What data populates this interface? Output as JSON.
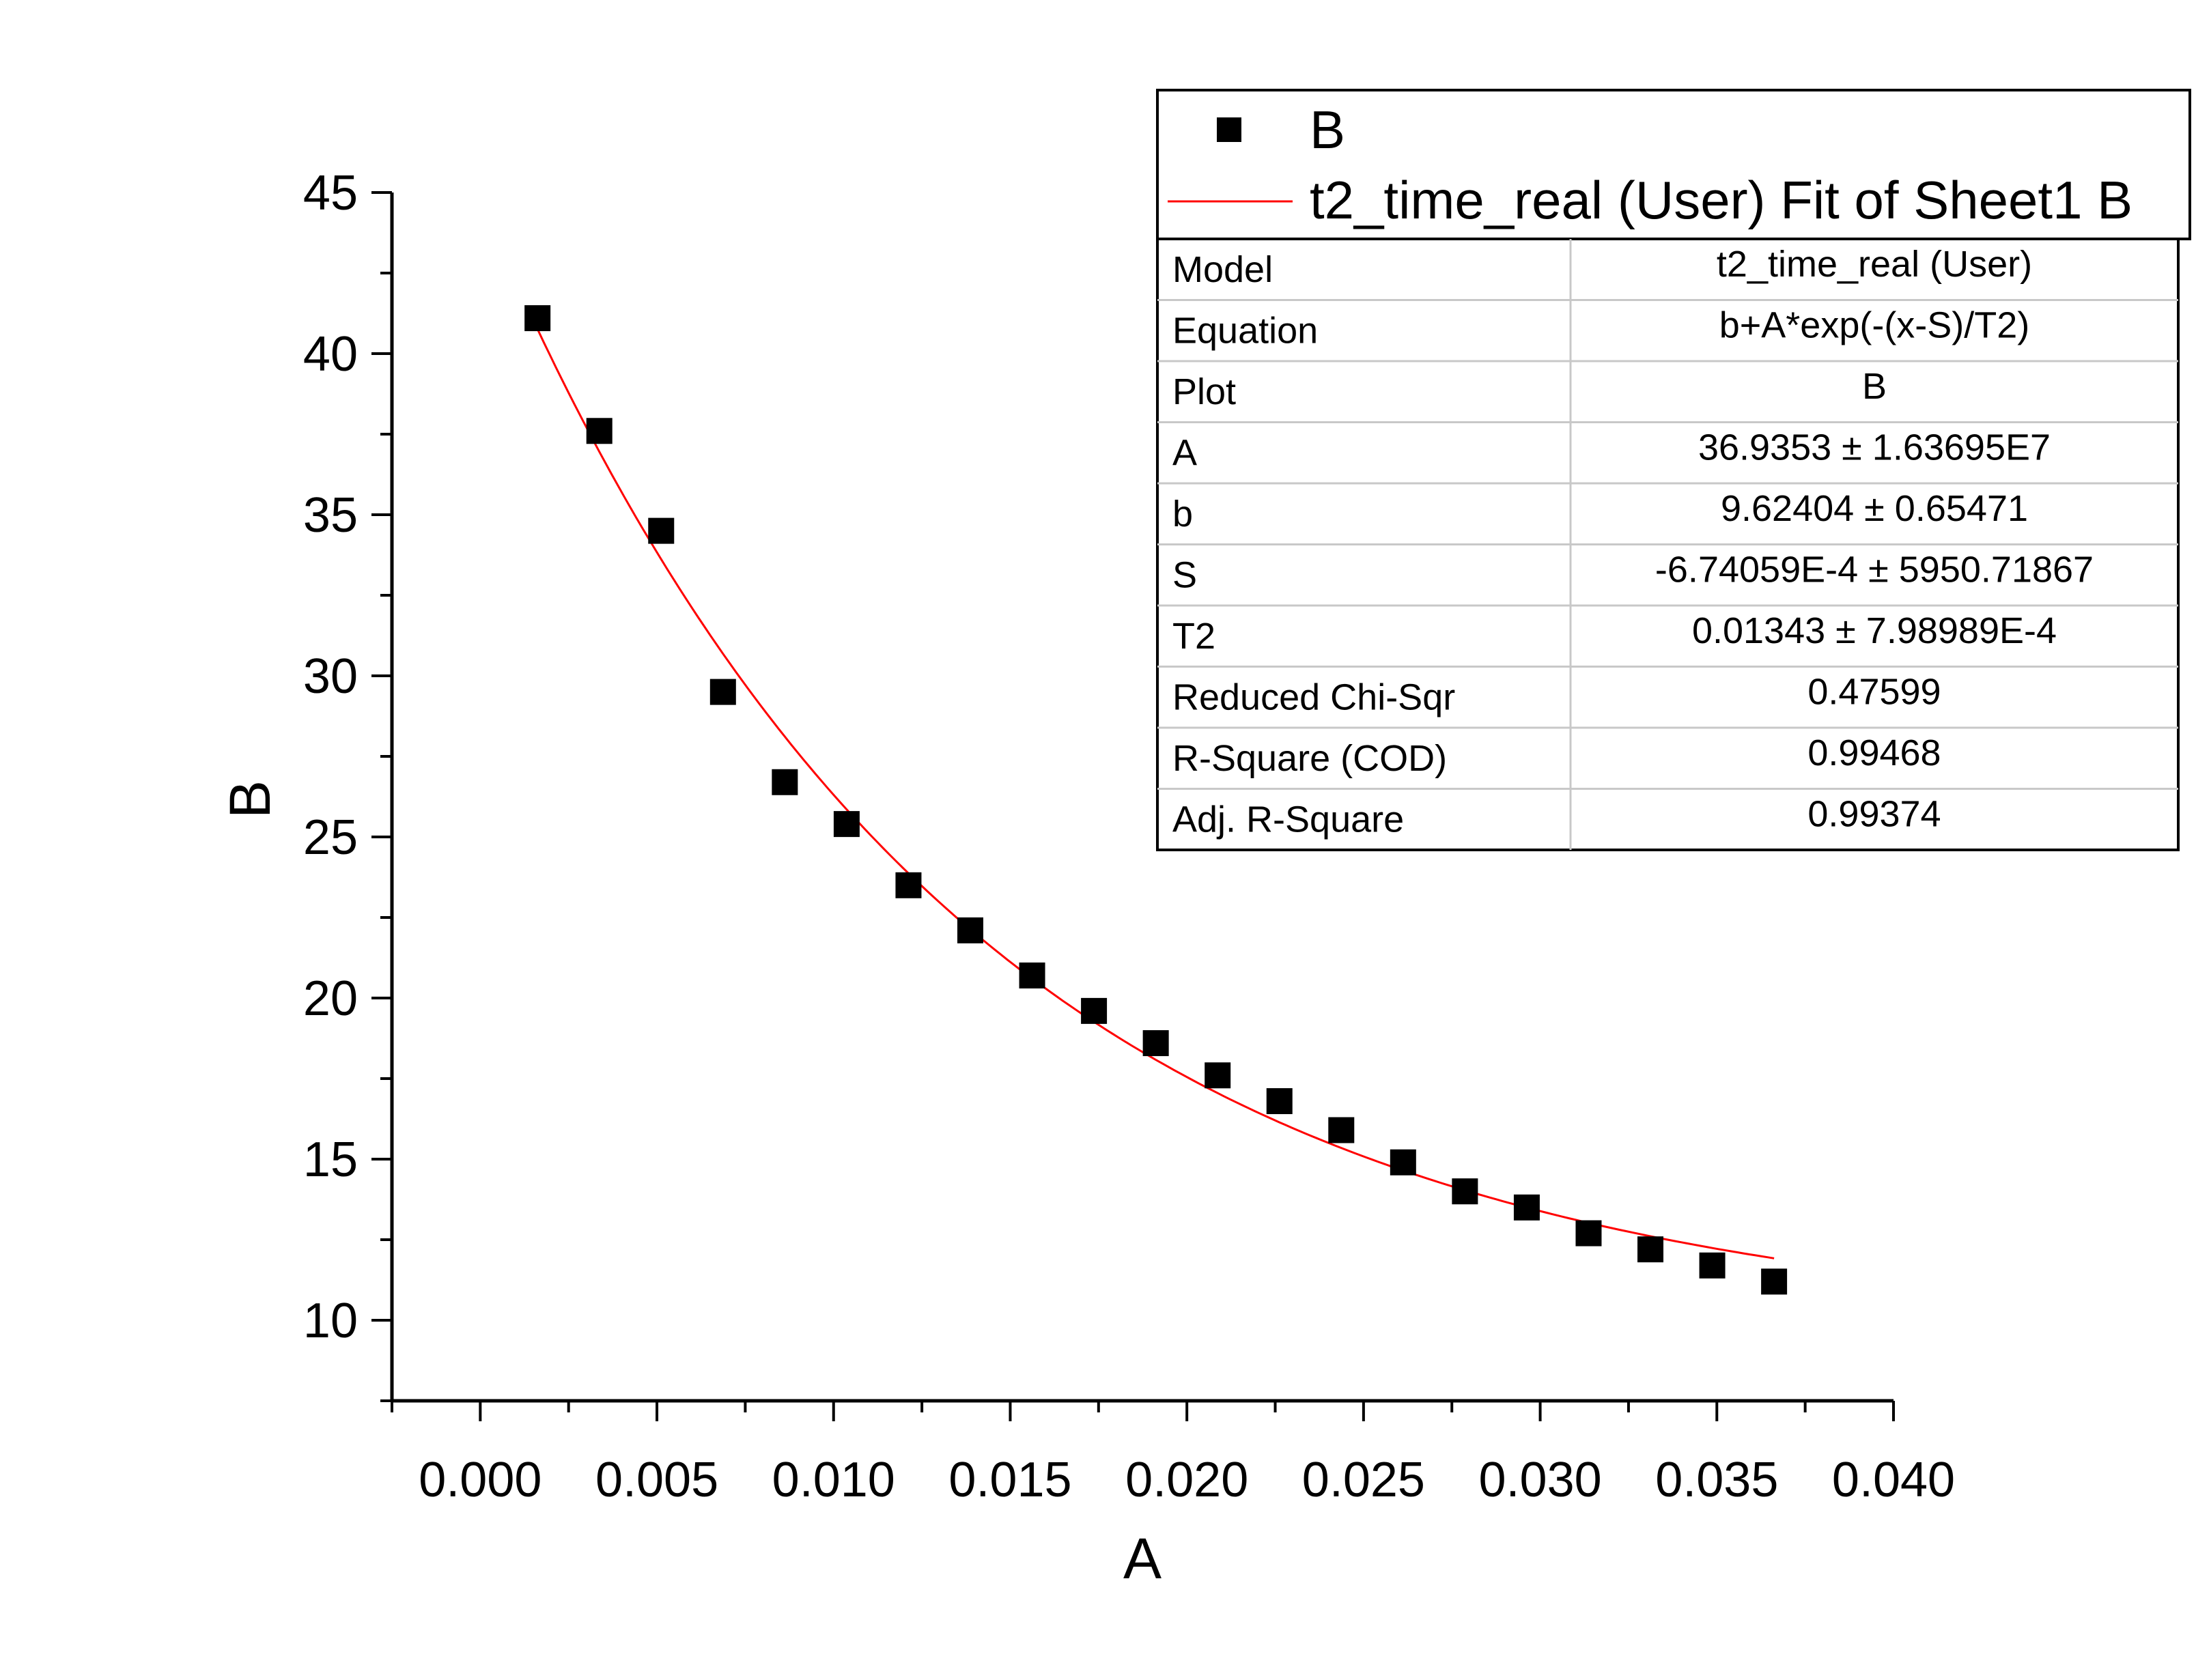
{
  "chart_data": {
    "type": "scatter",
    "xlabel": "A",
    "ylabel": "B",
    "xlim": [
      -0.0025,
      0.04
    ],
    "ylim": [
      7.5,
      45
    ],
    "x_ticks": [
      "0.000",
      "0.005",
      "0.010",
      "0.015",
      "0.020",
      "0.025",
      "0.030",
      "0.035",
      "0.040"
    ],
    "y_ticks": [
      "10",
      "15",
      "20",
      "25",
      "30",
      "35",
      "40",
      "45"
    ],
    "x_tick_values": [
      0,
      0.005,
      0.01,
      0.015,
      0.02,
      0.025,
      0.03,
      0.035,
      0.04
    ],
    "y_tick_values": [
      10,
      15,
      20,
      25,
      30,
      35,
      40,
      45
    ],
    "grid": false,
    "legend_position": "top-right",
    "series": [
      {
        "name": "B",
        "kind": "scatter",
        "marker": "square",
        "color": "#000000",
        "x": [
          0.00162,
          0.00337,
          0.00512,
          0.00687,
          0.00862,
          0.01037,
          0.01212,
          0.01387,
          0.01562,
          0.01737,
          0.01912,
          0.02087,
          0.02262,
          0.02437,
          0.02612,
          0.02787,
          0.02962,
          0.03137,
          0.03312,
          0.03487,
          0.03662
        ],
        "y": [
          41.1,
          37.6,
          34.5,
          29.5,
          26.7,
          25.4,
          23.5,
          22.1,
          20.7,
          19.6,
          18.6,
          17.6,
          16.8,
          15.9,
          14.9,
          14.0,
          13.5,
          12.7,
          12.2,
          11.7,
          11.2
        ]
      },
      {
        "name": "t2_time_real (User) Fit of Sheet1 B",
        "kind": "line",
        "color": "#ff0000"
      }
    ],
    "fit": {
      "params": {
        "A": 36.9353,
        "b": 9.62404,
        "S": -0.000674059,
        "T2": 0.01343
      },
      "x_range": [
        0.00162,
        0.03662
      ]
    },
    "fit_table": [
      {
        "label": "Model",
        "value": "t2_time_real (User)"
      },
      {
        "label": "Equation",
        "value": "b+A*exp(-(x-S)/T2)"
      },
      {
        "label": "Plot",
        "value": "B"
      },
      {
        "label": "A",
        "value": "36.9353 ± 1.63695E7"
      },
      {
        "label": "b",
        "value": "9.62404 ± 0.65471"
      },
      {
        "label": "S",
        "value": "-6.74059E-4 ± 5950.71867"
      },
      {
        "label": "T2",
        "value": "0.01343 ± 7.98989E-4"
      },
      {
        "label": "Reduced Chi-Sqr",
        "value": "0.47599"
      },
      {
        "label": "R-Square (COD)",
        "value": "0.99468"
      },
      {
        "label": "Adj. R-Square",
        "value": "0.99374"
      }
    ]
  }
}
